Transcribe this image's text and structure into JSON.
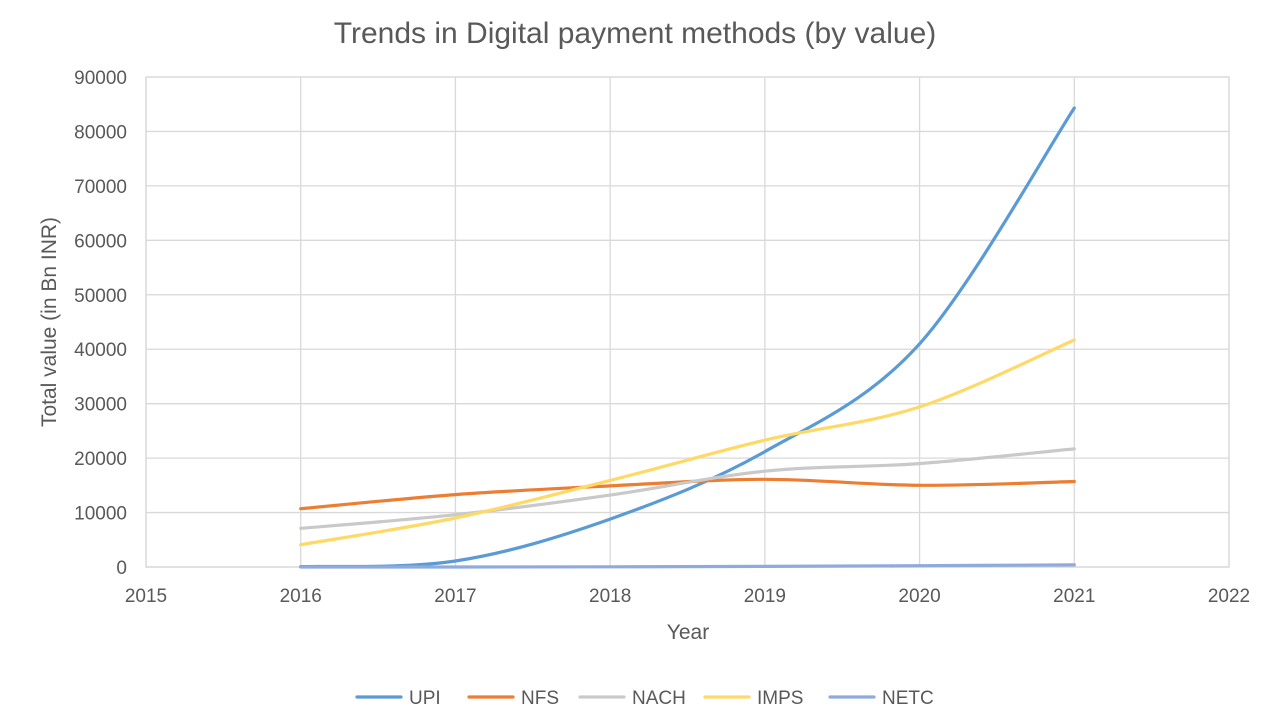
{
  "chart_data": {
    "type": "line",
    "smooth": true,
    "title": "Trends in Digital payment methods (by value)",
    "xlabel": "Year",
    "ylabel": "Total value (in Bn INR)",
    "xlim": [
      2015,
      2022
    ],
    "ylim": [
      0,
      90000
    ],
    "x_ticks": [
      "2015",
      "2016",
      "2017",
      "2018",
      "2019",
      "2020",
      "2021",
      "2022"
    ],
    "y_ticks": [
      "0",
      "10000",
      "20000",
      "30000",
      "40000",
      "50000",
      "60000",
      "70000",
      "80000",
      "90000"
    ],
    "grid": true,
    "legend_position": "bottom",
    "x": [
      2016,
      2017,
      2018,
      2019,
      2020,
      2021
    ],
    "series": [
      {
        "name": "UPI",
        "color": "#5b9bd5",
        "values": [
          70,
          1100,
          8800,
          21200,
          41000,
          84300
        ]
      },
      {
        "name": "NFS",
        "color": "#ed7d31",
        "values": [
          10700,
          13300,
          14900,
          16100,
          15000,
          15700
        ]
      },
      {
        "name": "NACH",
        "color": "#c9c9c9",
        "values": [
          7100,
          9600,
          13200,
          17600,
          19000,
          21700
        ]
      },
      {
        "name": "IMPS",
        "color": "#ffd966",
        "values": [
          4100,
          9000,
          15900,
          23300,
          29400,
          41700
        ]
      },
      {
        "name": "NETC",
        "color": "#8faadc",
        "values": [
          0,
          5,
          40,
          110,
          240,
          380
        ]
      }
    ]
  }
}
